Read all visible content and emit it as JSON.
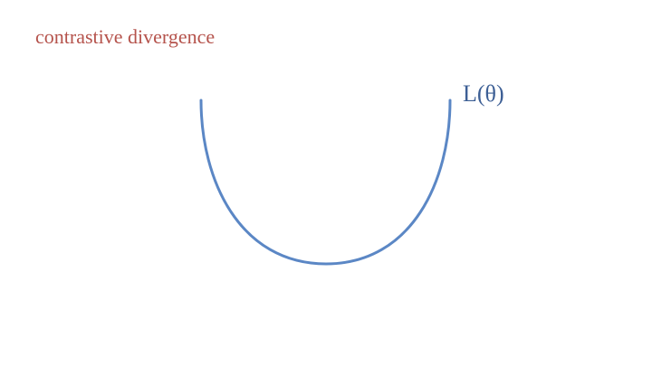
{
  "slide": {
    "title": "contrastive divergence",
    "curve_label": "L(θ)"
  },
  "colors": {
    "title": "#b5534c",
    "curve": "#5b87c5",
    "label": "#3d5f95",
    "background": "#ffffff"
  }
}
